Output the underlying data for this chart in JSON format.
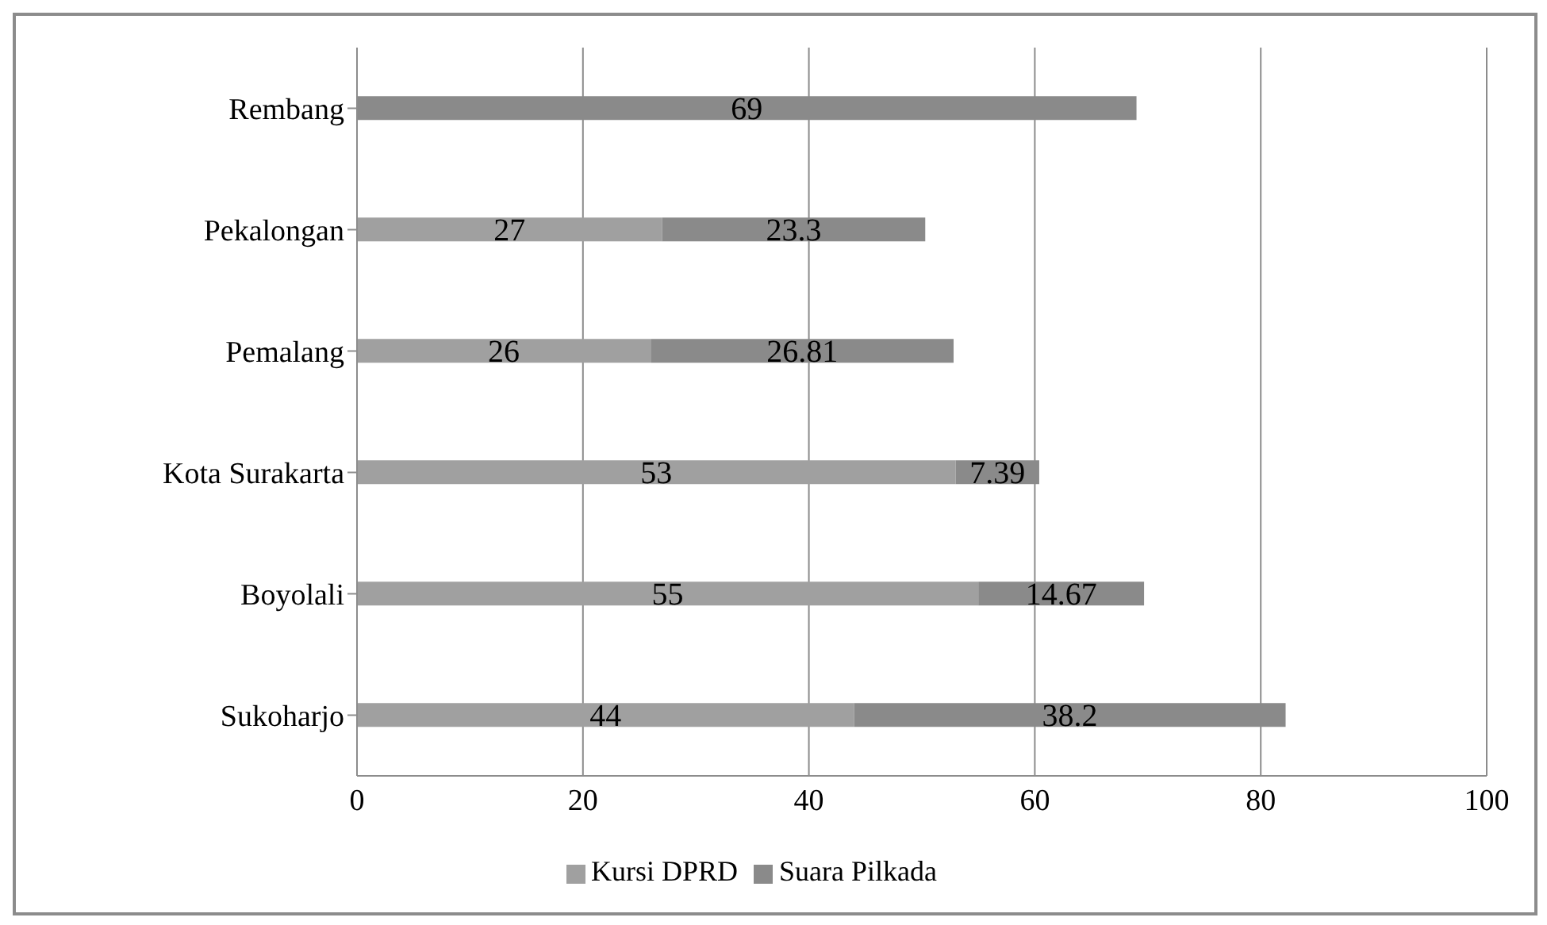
{
  "chart_data": {
    "type": "bar",
    "orientation": "horizontal",
    "stacked": true,
    "categories": [
      "Rembang",
      "Pekalongan",
      "Pemalang",
      "Kota Surakarta",
      "Boyolali",
      "Sukoharjo"
    ],
    "series": [
      {
        "name": "Kursi DPRD",
        "color": "#a0a0a0",
        "values": [
          null,
          27,
          26,
          53,
          55,
          44
        ]
      },
      {
        "name": "Suara Pilkada",
        "color": "#8a8a8a",
        "values": [
          69,
          23.3,
          26.81,
          7.39,
          14.67,
          38.2
        ]
      }
    ],
    "xlim": [
      0,
      100
    ],
    "xticks": [
      0,
      20,
      40,
      60,
      80,
      100
    ],
    "grid": "x",
    "legend": "bottom",
    "data_labels": true
  }
}
